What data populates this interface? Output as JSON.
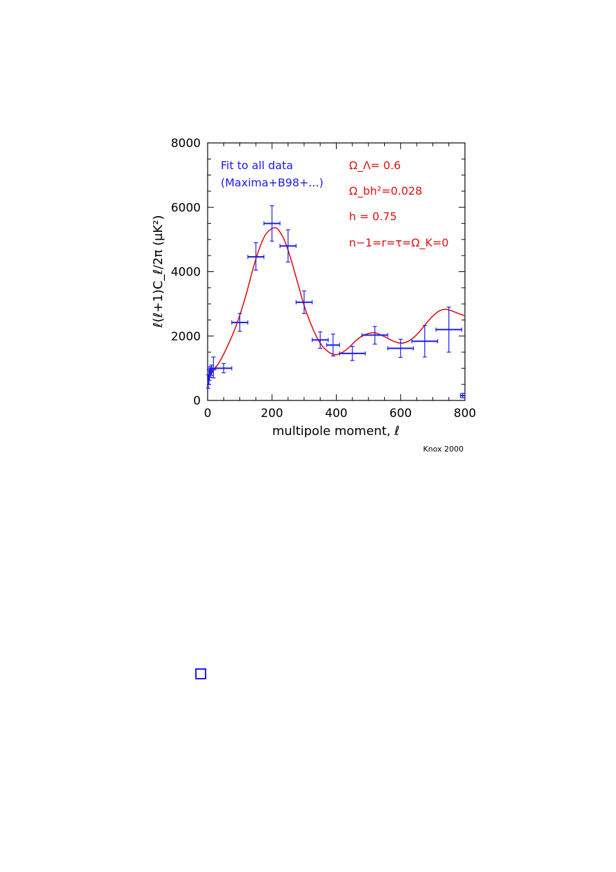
{
  "chart_data": {
    "type": "scatter",
    "xlabel": "multipole moment, ℓ",
    "ylabel": "ℓ(ℓ+1)C_ℓ/2π (μK²)",
    "xlim": [
      0,
      800
    ],
    "ylim": [
      0,
      8000
    ],
    "xticks": [
      0,
      200,
      400,
      600,
      800
    ],
    "yticks": [
      0,
      2000,
      4000,
      6000,
      8000
    ],
    "xtick_labels": [
      "0",
      "200",
      "400",
      "600",
      "800"
    ],
    "ytick_labels": [
      "0",
      "2000",
      "4000",
      "6000",
      "8000"
    ],
    "grid": false,
    "colors": {
      "data": "#1a1aee",
      "fit": "#e01010"
    },
    "annotations": {
      "fit_line1": "Fit to all data",
      "fit_line2": "(Maxima+B98+...)",
      "omega_lambda": "Ω_Λ= 0.6",
      "omega_b": "Ω_bh²=0.028",
      "hubble": "h = 0.75",
      "other": "n−1=r=τ=Ω_K=0"
    },
    "credit": "Knox 2000",
    "points": [
      {
        "x": 2,
        "y": 550,
        "xlo": 1,
        "xhi": 4,
        "ylo": 380,
        "yhi": 800
      },
      {
        "x": 4,
        "y": 700,
        "xlo": 3,
        "xhi": 6,
        "ylo": 500,
        "yhi": 950
      },
      {
        "x": 6,
        "y": 800,
        "xlo": 5,
        "xhi": 8,
        "ylo": 620,
        "yhi": 1000
      },
      {
        "x": 8,
        "y": 900,
        "xlo": 7,
        "xhi": 10,
        "ylo": 720,
        "yhi": 1050
      },
      {
        "x": 12,
        "y": 950,
        "xlo": 10,
        "xhi": 15,
        "ylo": 780,
        "yhi": 1100
      },
      {
        "x": 18,
        "y": 1000,
        "xlo": 12,
        "xhi": 25,
        "ylo": 700,
        "yhi": 1350
      },
      {
        "x": 50,
        "y": 1000,
        "xlo": 25,
        "xhi": 75,
        "ylo": 860,
        "yhi": 1150
      },
      {
        "x": 100,
        "y": 2420,
        "xlo": 75,
        "xhi": 125,
        "ylo": 2150,
        "yhi": 2700
      },
      {
        "x": 150,
        "y": 4460,
        "xlo": 125,
        "xhi": 175,
        "ylo": 4050,
        "yhi": 4900
      },
      {
        "x": 200,
        "y": 5500,
        "xlo": 175,
        "xhi": 225,
        "ylo": 4950,
        "yhi": 6050
      },
      {
        "x": 250,
        "y": 4800,
        "xlo": 225,
        "xhi": 275,
        "ylo": 4300,
        "yhi": 5300
      },
      {
        "x": 300,
        "y": 3050,
        "xlo": 275,
        "xhi": 325,
        "ylo": 2700,
        "yhi": 3400
      },
      {
        "x": 350,
        "y": 1880,
        "xlo": 325,
        "xhi": 375,
        "ylo": 1620,
        "yhi": 2130
      },
      {
        "x": 390,
        "y": 1720,
        "xlo": 370,
        "xhi": 410,
        "ylo": 1380,
        "yhi": 2060
      },
      {
        "x": 450,
        "y": 1460,
        "xlo": 410,
        "xhi": 490,
        "ylo": 1240,
        "yhi": 1680
      },
      {
        "x": 520,
        "y": 2030,
        "xlo": 480,
        "xhi": 560,
        "ylo": 1750,
        "yhi": 2300
      },
      {
        "x": 600,
        "y": 1620,
        "xlo": 560,
        "xhi": 640,
        "ylo": 1340,
        "yhi": 1900
      },
      {
        "x": 675,
        "y": 1840,
        "xlo": 635,
        "xhi": 715,
        "ylo": 1350,
        "yhi": 2330
      },
      {
        "x": 750,
        "y": 2200,
        "xlo": 710,
        "xhi": 790,
        "ylo": 1500,
        "yhi": 2900
      },
      {
        "x": 793,
        "y": 150,
        "xlo": 786,
        "xhi": 800,
        "ylo": 80,
        "yhi": 220
      }
    ],
    "fit_curve": {
      "x": [
        2,
        10,
        20,
        40,
        60,
        80,
        100,
        120,
        140,
        160,
        180,
        200,
        210,
        220,
        240,
        260,
        280,
        300,
        320,
        340,
        360,
        380,
        400,
        420,
        440,
        460,
        480,
        500,
        520,
        540,
        560,
        580,
        600,
        620,
        640,
        660,
        680,
        700,
        720,
        740,
        760,
        780,
        800
      ],
      "y": [
        650,
        800,
        950,
        1250,
        1650,
        2100,
        2650,
        3300,
        4050,
        4700,
        5150,
        5340,
        5360,
        5300,
        4950,
        4350,
        3650,
        2950,
        2400,
        1950,
        1650,
        1480,
        1420,
        1500,
        1650,
        1850,
        2000,
        2080,
        2100,
        2030,
        1930,
        1830,
        1780,
        1820,
        1950,
        2150,
        2400,
        2620,
        2780,
        2830,
        2780,
        2700,
        2630
      ]
    }
  }
}
